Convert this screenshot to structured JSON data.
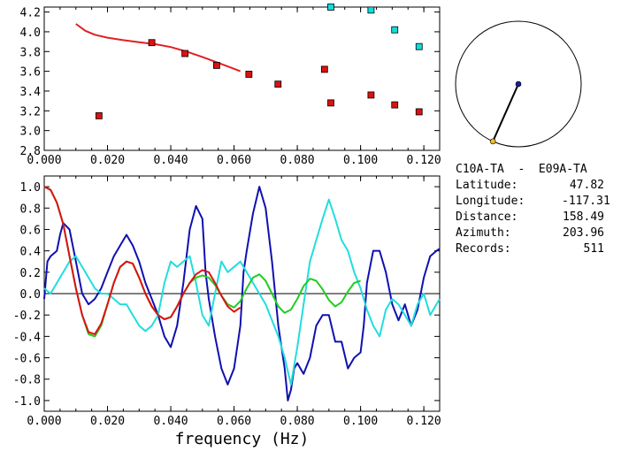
{
  "info": {
    "station_pair": "C10A-TA  -  E09A-TA",
    "rows": [
      {
        "label": "Latitude:",
        "value": "47.82"
      },
      {
        "label": "Longitude:",
        "value": "-117.31"
      },
      {
        "label": "Distance:",
        "value": "158.49"
      },
      {
        "label": "Azimuth:",
        "value": "203.96"
      },
      {
        "label": "Records:",
        "value": "511"
      }
    ]
  },
  "azimuth_deg": 203.96,
  "chart_data": [
    {
      "type": "scatter",
      "name": "phase-velocity-panel",
      "xlim": [
        0,
        0.125
      ],
      "ylim": [
        2.8,
        4.25
      ],
      "x_ticks": [
        "0.000",
        "0.020",
        "0.040",
        "0.060",
        "0.080",
        "0.100",
        "0.120"
      ],
      "x_tick_values": [
        0,
        0.02,
        0.04,
        0.06,
        0.08,
        0.1,
        0.12
      ],
      "y_ticks": [
        "2.8",
        "3.0",
        "3.2",
        "3.4",
        "3.6",
        "3.8",
        "4.0",
        "4.2"
      ],
      "y_tick_values": [
        2.8,
        3.0,
        3.2,
        3.4,
        3.6,
        3.8,
        4.0,
        4.2
      ],
      "series": [
        {
          "name": "red-curve",
          "kind": "line",
          "color": "#e02020",
          "x": [
            0.01,
            0.013,
            0.016,
            0.02,
            0.025,
            0.03,
            0.035,
            0.04,
            0.045,
            0.05,
            0.055,
            0.06,
            0.062
          ],
          "y": [
            4.08,
            4.01,
            3.97,
            3.94,
            3.915,
            3.895,
            3.875,
            3.845,
            3.8,
            3.745,
            3.685,
            3.625,
            3.6
          ]
        },
        {
          "name": "red-squares",
          "kind": "marker",
          "color": "#dd1111",
          "x": [
            0.0173,
            0.034,
            0.0445,
            0.0545,
            0.0647,
            0.0739,
            0.0886,
            0.0906,
            0.1033,
            0.1108,
            0.1185
          ],
          "y": [
            3.15,
            3.89,
            3.78,
            3.66,
            3.57,
            3.47,
            3.62,
            3.28,
            3.36,
            3.26,
            3.19
          ]
        },
        {
          "name": "cyan-squares",
          "kind": "marker",
          "color": "#11dddd",
          "x": [
            0.0906,
            0.1033,
            0.1108,
            0.1185
          ],
          "y": [
            4.25,
            4.22,
            4.02,
            3.85
          ]
        }
      ]
    },
    {
      "type": "line",
      "name": "correlation-panel",
      "xlabel": "frequency (Hz)",
      "xlim": [
        0,
        0.125
      ],
      "ylim": [
        -1.1,
        1.1
      ],
      "x_ticks": [
        "0.000",
        "0.020",
        "0.040",
        "0.060",
        "0.080",
        "0.100",
        "0.120"
      ],
      "x_tick_values": [
        0,
        0.02,
        0.04,
        0.06,
        0.08,
        0.1,
        0.12
      ],
      "y_ticks": [
        "1.0",
        "0.8",
        "0.6",
        "0.4",
        "0.2",
        "0.0",
        "-0.2",
        "-0.4",
        "-0.6",
        "-0.8",
        "-1.0"
      ],
      "y_tick_values": [
        1.0,
        0.8,
        0.6,
        0.4,
        0.2,
        0.0,
        -0.2,
        -0.4,
        -0.6,
        -0.8,
        -1.0
      ],
      "series": [
        {
          "name": "blue",
          "color": "#1010b0",
          "x": [
            0,
            0.001,
            0.002,
            0.004,
            0.005,
            0.006,
            0.008,
            0.01,
            0.012,
            0.014,
            0.016,
            0.018,
            0.02,
            0.022,
            0.024,
            0.026,
            0.028,
            0.03,
            0.032,
            0.034,
            0.036,
            0.038,
            0.04,
            0.042,
            0.044,
            0.046,
            0.048,
            0.05,
            0.051,
            0.052,
            0.054,
            0.056,
            0.058,
            0.06,
            0.062,
            0.063,
            0.064,
            0.066,
            0.068,
            0.07,
            0.072,
            0.074,
            0.076,
            0.077,
            0.078,
            0.079,
            0.08,
            0.082,
            0.084,
            0.086,
            0.088,
            0.09,
            0.092,
            0.094,
            0.096,
            0.098,
            0.1,
            0.101,
            0.102,
            0.104,
            0.106,
            0.108,
            0.11,
            0.112,
            0.114,
            0.116,
            0.118,
            0.12,
            0.122,
            0.124,
            0.125
          ],
          "y": [
            -0.05,
            0.3,
            0.35,
            0.4,
            0.55,
            0.66,
            0.6,
            0.3,
            0.0,
            -0.1,
            -0.05,
            0.05,
            0.2,
            0.35,
            0.45,
            0.55,
            0.45,
            0.3,
            0.1,
            -0.05,
            -0.2,
            -0.4,
            -0.5,
            -0.3,
            0.1,
            0.6,
            0.82,
            0.7,
            0.2,
            -0.05,
            -0.4,
            -0.7,
            -0.85,
            -0.7,
            -0.3,
            0.2,
            0.4,
            0.75,
            1.0,
            0.8,
            0.3,
            -0.3,
            -0.7,
            -1.0,
            -0.9,
            -0.7,
            -0.65,
            -0.75,
            -0.6,
            -0.3,
            -0.2,
            -0.2,
            -0.45,
            -0.45,
            -0.7,
            -0.6,
            -0.55,
            -0.3,
            0.1,
            0.4,
            0.4,
            0.2,
            -0.1,
            -0.25,
            -0.1,
            -0.3,
            -0.15,
            0.15,
            0.35,
            0.4,
            0.42
          ]
        },
        {
          "name": "cyan",
          "color": "#22dddd",
          "x": [
            0,
            0.002,
            0.004,
            0.006,
            0.008,
            0.01,
            0.012,
            0.014,
            0.016,
            0.018,
            0.02,
            0.022,
            0.024,
            0.026,
            0.028,
            0.03,
            0.032,
            0.034,
            0.036,
            0.038,
            0.04,
            0.042,
            0.044,
            0.046,
            0.048,
            0.05,
            0.052,
            0.054,
            0.056,
            0.058,
            0.06,
            0.062,
            0.064,
            0.066,
            0.068,
            0.07,
            0.072,
            0.074,
            0.076,
            0.078,
            0.08,
            0.082,
            0.084,
            0.086,
            0.088,
            0.09,
            0.092,
            0.094,
            0.096,
            0.098,
            0.1,
            0.102,
            0.104,
            0.106,
            0.108,
            0.11,
            0.112,
            0.114,
            0.116,
            0.118,
            0.12,
            0.122,
            0.124,
            0.125
          ],
          "y": [
            0.05,
            0.0,
            0.1,
            0.2,
            0.3,
            0.35,
            0.25,
            0.15,
            0.05,
            0.0,
            0.0,
            -0.05,
            -0.1,
            -0.1,
            -0.2,
            -0.3,
            -0.35,
            -0.3,
            -0.2,
            0.1,
            0.3,
            0.25,
            0.3,
            0.35,
            0.1,
            -0.2,
            -0.3,
            0.0,
            0.3,
            0.2,
            0.25,
            0.3,
            0.2,
            0.1,
            0.0,
            -0.1,
            -0.25,
            -0.4,
            -0.6,
            -0.85,
            -0.5,
            -0.1,
            0.3,
            0.5,
            0.7,
            0.88,
            0.7,
            0.5,
            0.4,
            0.2,
            0.05,
            -0.15,
            -0.3,
            -0.4,
            -0.15,
            -0.05,
            -0.1,
            -0.2,
            -0.3,
            -0.1,
            0.0,
            -0.2,
            -0.1,
            -0.05
          ]
        },
        {
          "name": "green",
          "color": "#22cc22",
          "x": [
            0,
            0.002,
            0.004,
            0.006,
            0.008,
            0.01,
            0.012,
            0.014,
            0.016,
            0.018,
            0.02,
            0.022,
            0.024,
            0.026,
            0.028,
            0.03,
            0.032,
            0.034,
            0.036,
            0.038,
            0.04,
            0.042,
            0.044,
            0.046,
            0.048,
            0.05,
            0.052,
            0.054,
            0.056,
            0.058,
            0.06,
            0.062,
            0.064,
            0.066,
            0.068,
            0.07,
            0.072,
            0.074,
            0.076,
            0.078,
            0.08,
            0.082,
            0.084,
            0.086,
            0.088,
            0.09,
            0.092,
            0.094,
            0.096,
            0.098,
            0.1
          ],
          "y": [
            1.0,
            0.97,
            0.85,
            0.65,
            0.35,
            0.05,
            -0.2,
            -0.38,
            -0.4,
            -0.3,
            -0.1,
            0.1,
            0.25,
            0.3,
            0.28,
            0.15,
            0.0,
            -0.12,
            -0.2,
            -0.24,
            -0.22,
            -0.12,
            0.0,
            0.1,
            0.15,
            0.17,
            0.15,
            0.08,
            -0.02,
            -0.1,
            -0.13,
            -0.07,
            0.05,
            0.15,
            0.18,
            0.12,
            0.0,
            -0.12,
            -0.18,
            -0.15,
            -0.05,
            0.07,
            0.14,
            0.12,
            0.04,
            -0.06,
            -0.12,
            -0.08,
            0.02,
            0.1,
            0.12
          ]
        },
        {
          "name": "red",
          "color": "#dd1111",
          "x": [
            0,
            0.002,
            0.004,
            0.006,
            0.008,
            0.01,
            0.012,
            0.014,
            0.016,
            0.018,
            0.02,
            0.022,
            0.024,
            0.026,
            0.028,
            0.03,
            0.032,
            0.034,
            0.036,
            0.038,
            0.04,
            0.042,
            0.044,
            0.046,
            0.048,
            0.05,
            0.052,
            0.054,
            0.056,
            0.058,
            0.06,
            0.062
          ],
          "y": [
            1.0,
            0.97,
            0.85,
            0.65,
            0.35,
            0.05,
            -0.2,
            -0.36,
            -0.38,
            -0.28,
            -0.1,
            0.1,
            0.25,
            0.3,
            0.28,
            0.15,
            0.0,
            -0.12,
            -0.2,
            -0.24,
            -0.22,
            -0.12,
            0.0,
            0.1,
            0.18,
            0.22,
            0.2,
            0.1,
            -0.02,
            -0.12,
            -0.17,
            -0.13
          ]
        }
      ]
    }
  ]
}
